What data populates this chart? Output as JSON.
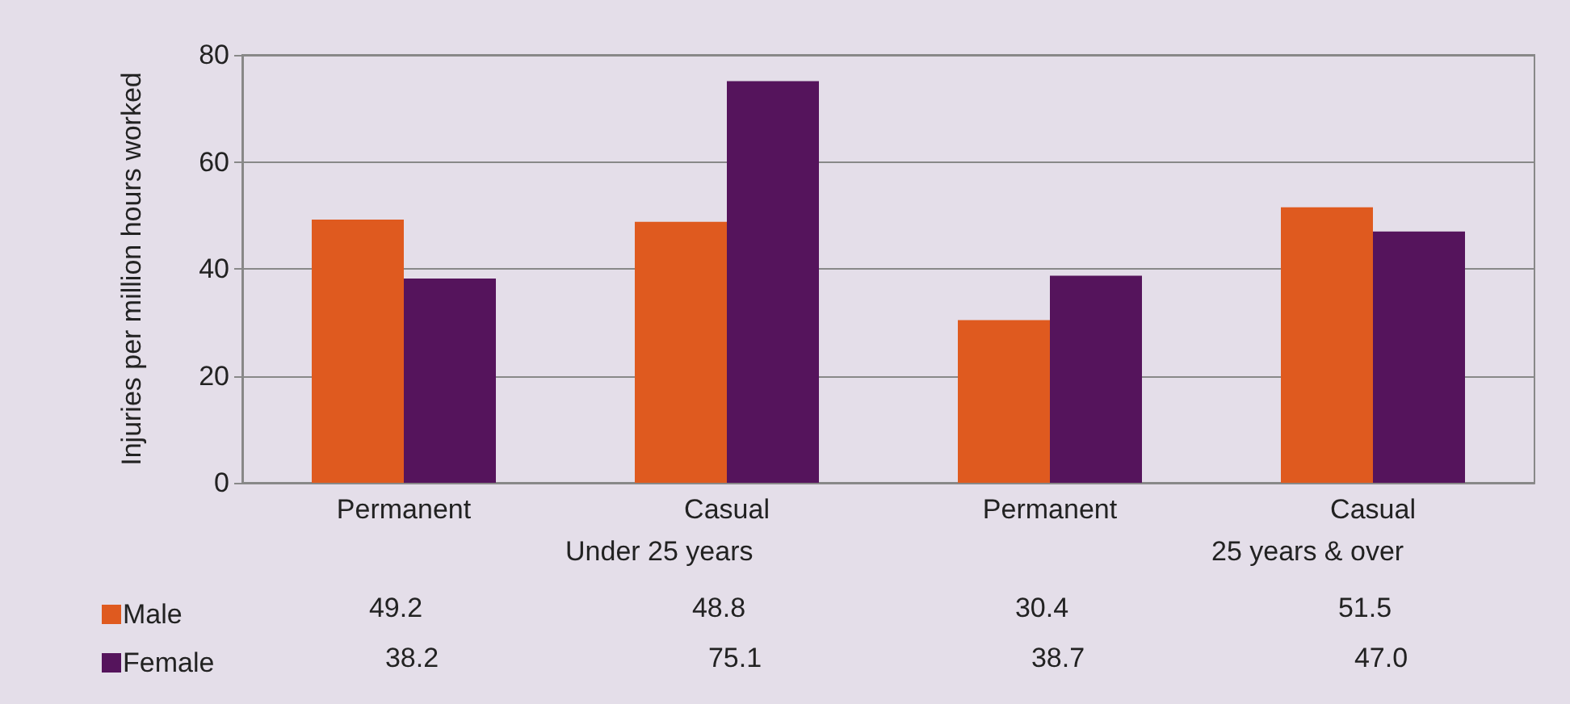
{
  "chart_data": {
    "type": "bar",
    "ylabel": "Injuries per million hours worked",
    "categories": [
      "Permanent",
      "Casual",
      "Permanent",
      "Casual"
    ],
    "series": [
      {
        "name": "Male",
        "color": "#df5a1f",
        "values": [
          49.2,
          48.8,
          30.4,
          51.5
        ],
        "value_labels": [
          "49.2",
          "48.8",
          "30.4",
          "51.5"
        ]
      },
      {
        "name": "Female",
        "color": "#55145c",
        "values": [
          38.2,
          75.1,
          38.7,
          47.0
        ],
        "value_labels": [
          "38.2",
          "75.1",
          "38.7",
          "47.0"
        ]
      }
    ],
    "annotations": [
      "Under 25 years",
      "25 years & over"
    ],
    "ylim": [
      0,
      80
    ],
    "yticks": [
      0,
      20,
      40,
      60,
      80
    ],
    "grid": "y",
    "legend": "bottom left"
  }
}
